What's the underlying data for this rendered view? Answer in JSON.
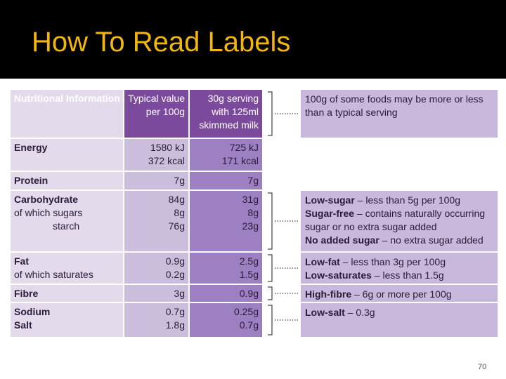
{
  "title": "How To Read Labels",
  "table": {
    "header": [
      [
        "Nutritional Information"
      ],
      [
        "Typical value",
        "per 100g"
      ],
      [
        "30g serving",
        "with 125ml",
        "skimmed milk"
      ]
    ],
    "rows": [
      {
        "names": [
          "Energy"
        ],
        "typical": [
          "1580 kJ",
          "372 kcal"
        ],
        "serving": [
          "725 kJ",
          "171 kcal"
        ]
      },
      {
        "names": [
          "Protein"
        ],
        "typical": [
          "7g"
        ],
        "serving": [
          "7g"
        ]
      },
      {
        "names": [
          "Carbohydrate"
        ],
        "sub": [
          "of which sugars",
          "starch"
        ],
        "typical": [
          "84g",
          "8g",
          "76g"
        ],
        "serving": [
          "31g",
          "8g",
          "23g"
        ]
      },
      {
        "names": [
          "Fat"
        ],
        "sub": [
          "of which saturates"
        ],
        "typical": [
          "0.9g",
          "0.2g"
        ],
        "serving": [
          "2.5g",
          "1.5g"
        ]
      },
      {
        "names": [
          "Fibre"
        ],
        "typical": [
          "3g"
        ],
        "serving": [
          "0.9g"
        ]
      },
      {
        "names": [
          "Sodium",
          "Salt"
        ],
        "typical": [
          "0.7g",
          "1.8g"
        ],
        "serving": [
          "0.25g",
          "0.7g"
        ]
      }
    ]
  },
  "notes": [
    {
      "lines": [
        "100g of some foods may be more or less",
        "than a typical serving"
      ]
    },
    {
      "lines": [
        {
          "bold": "Low-sugar",
          "text": " – less than 5g per 100g"
        },
        {
          "bold": "Sugar-free",
          "text": " – contains naturally occurring"
        },
        "sugar or no extra sugar added",
        {
          "bold": "No added sugar",
          "text": " – no extra sugar added"
        }
      ]
    },
    {
      "lines": [
        {
          "bold": "Low-fat",
          "text": " – less than 3g per 100g"
        },
        {
          "bold": "Low-saturates",
          "text": " – less than 1.5g"
        }
      ]
    },
    {
      "lines": [
        {
          "bold": "High-fibre",
          "text": " – 6g or more per 100g"
        }
      ]
    },
    {
      "lines": [
        {
          "bold": "Low-salt",
          "text": " – 0.3g"
        }
      ]
    }
  ],
  "page_number": "70"
}
